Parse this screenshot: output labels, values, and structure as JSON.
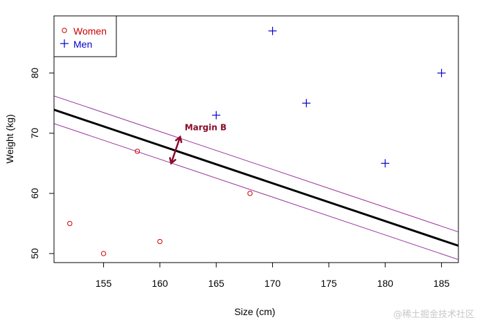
{
  "chart_data": {
    "type": "scatter",
    "title": "",
    "xlabel": "Size (cm)",
    "ylabel": "Weight (kg)",
    "xlim": [
      150.6,
      186.5
    ],
    "ylim": [
      48.5,
      89.5
    ],
    "xticks": [
      155,
      160,
      165,
      170,
      175,
      180,
      185
    ],
    "yticks": [
      50,
      60,
      70,
      80
    ],
    "grid": false,
    "legend_position": "top-left",
    "series": [
      {
        "name": "Women",
        "marker": "circle",
        "color": "#cc0000",
        "points": [
          {
            "x": 152,
            "y": 55
          },
          {
            "x": 155,
            "y": 50
          },
          {
            "x": 158,
            "y": 67
          },
          {
            "x": 160,
            "y": 52
          },
          {
            "x": 168,
            "y": 60
          }
        ]
      },
      {
        "name": "Men",
        "marker": "plus",
        "color": "#0000cc",
        "points": [
          {
            "x": 165,
            "y": 73
          },
          {
            "x": 170,
            "y": 87
          },
          {
            "x": 173,
            "y": 75
          },
          {
            "x": 180,
            "y": 65
          },
          {
            "x": 185,
            "y": 80
          }
        ]
      }
    ],
    "lines": [
      {
        "role": "decision-boundary",
        "color": "#000000",
        "x1": 150.6,
        "y1": 73.9,
        "x2": 186.5,
        "y2": 51.3
      },
      {
        "role": "upper-margin",
        "color": "#993399",
        "x1": 150.6,
        "y1": 76.2,
        "x2": 186.5,
        "y2": 53.6
      },
      {
        "role": "lower-margin",
        "color": "#993399",
        "x1": 150.6,
        "y1": 71.6,
        "x2": 186.5,
        "y2": 49.0
      }
    ],
    "annotation": {
      "text": "Margin  B",
      "color": "#8b0a2a",
      "arrow_from": {
        "x": 161,
        "y": 65
      },
      "arrow_to": {
        "x": 161.8,
        "y": 69.4
      },
      "text_at": {
        "x": 162.2,
        "y": 70.5
      }
    }
  },
  "watermark": "@稀土掘金技术社区"
}
